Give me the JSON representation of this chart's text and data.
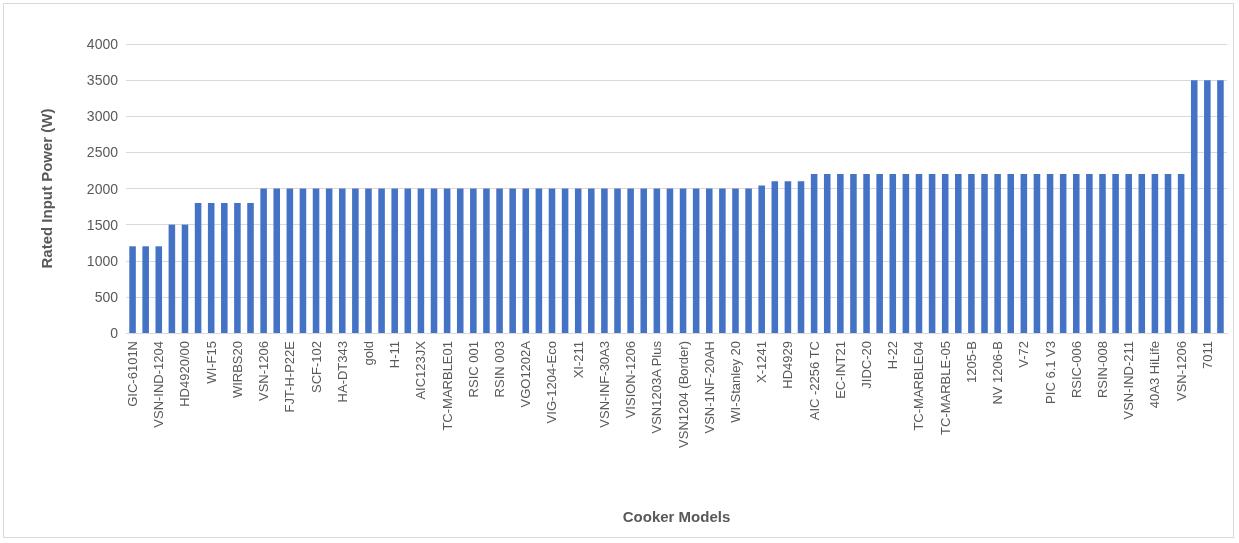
{
  "chart_data": {
    "type": "bar",
    "xlabel": "Cooker Models",
    "ylabel": "Rated Input Power (W)",
    "categories": [
      "GIC-6101N",
      null,
      "VSN-IND-1204",
      null,
      "HD4920/00",
      null,
      "WI-F15",
      null,
      "WIRBS20",
      null,
      "VSN-1206",
      null,
      "FJT-H-P22E",
      null,
      "SCF-102",
      null,
      "HA-DT343",
      null,
      "gold",
      null,
      "H-11",
      null,
      "AIC123JX",
      null,
      "TC-MARBLE01",
      null,
      "RSIC 001",
      null,
      "RSIN 003",
      null,
      "VGO1202A",
      null,
      "VIG-1204-Eco",
      null,
      "XI-211",
      null,
      "VSN-INF-30A3",
      null,
      "VISION-1206",
      null,
      "VSN1203A Plus",
      null,
      "VSN1204 (Border)",
      null,
      "VSN-1NF-20AH",
      null,
      "WI-Stanley 20",
      null,
      "X-1241",
      null,
      "HD4929",
      null,
      "AIC -2256 TC",
      null,
      "EC-INT21",
      null,
      "JIDC-20",
      null,
      "H-22",
      null,
      "TC-MARBLE04",
      null,
      "TC-MARBLE-05",
      null,
      "1205-B",
      null,
      "NV 1206-B",
      null,
      "V-72",
      null,
      "PIC 6.1 V3",
      null,
      "RSIC-006",
      null,
      "RSIN-008",
      null,
      "VSN-IND-211",
      null,
      "40A3 HiLife",
      null,
      "VSN-1206",
      null,
      "7011",
      null
    ],
    "values": [
      1200,
      1200,
      1200,
      1500,
      1500,
      1800,
      1800,
      1800,
      1800,
      1800,
      2000,
      2000,
      2000,
      2000,
      2000,
      2000,
      2000,
      2000,
      2000,
      2000,
      2000,
      2000,
      2000,
      2000,
      2000,
      2000,
      2000,
      2000,
      2000,
      2000,
      2000,
      2000,
      2000,
      2000,
      2000,
      2000,
      2000,
      2000,
      2000,
      2000,
      2000,
      2000,
      2000,
      2000,
      2000,
      2000,
      2000,
      2000,
      2040,
      2100,
      2100,
      2100,
      2200,
      2200,
      2200,
      2200,
      2200,
      2200,
      2200,
      2200,
      2200,
      2200,
      2200,
      2200,
      2200,
      2200,
      2200,
      2200,
      2200,
      2200,
      2200,
      2200,
      2200,
      2200,
      2200,
      2200,
      2200,
      2200,
      2200,
      2200,
      2200,
      3500,
      3500,
      3500
    ],
    "color": "#4472c4",
    "ylim": [
      0,
      4000
    ],
    "yticks": [
      0,
      500,
      1000,
      1500,
      2000,
      2500,
      3000,
      3500,
      4000
    ],
    "grid": "y"
  }
}
